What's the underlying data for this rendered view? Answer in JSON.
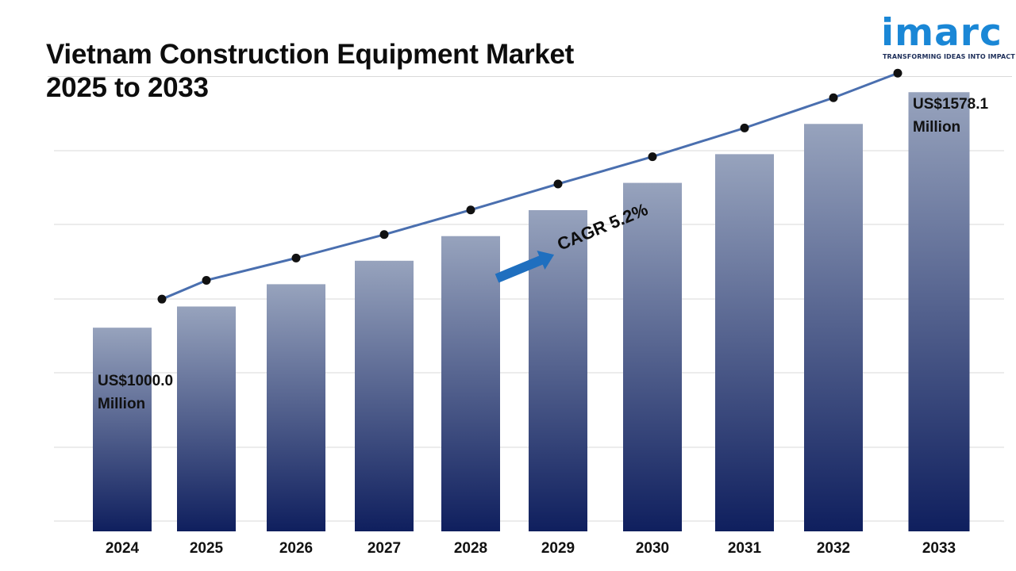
{
  "header": {
    "title_line1": "Vietnam Construction Equipment Market",
    "title_line2": "2025 to 2033"
  },
  "logo": {
    "word": "imarc",
    "tagline": "TRANSFORMING IDEAS INTO IMPACT",
    "color": "#1a87d6"
  },
  "chart_data": {
    "type": "bar",
    "categories": [
      "2024",
      "2025",
      "2026",
      "2027",
      "2028",
      "2029",
      "2030",
      "2031",
      "2032",
      "2033"
    ],
    "values": [
      1000.0,
      1052.0,
      1106.7,
      1164.3,
      1224.8,
      1288.5,
      1355.5,
      1426.0,
      1500.2,
      1578.1
    ],
    "overlay_line": true,
    "first_label": "US$1000.0 Million",
    "last_label": "US$1578.1 Million",
    "annotation": "CAGR 5.2%",
    "ylim": [
      500,
      1600
    ],
    "grid": true,
    "bar_gradient": [
      "#97a3bd",
      "#0f1f5e"
    ],
    "line_color": "#4a6faf",
    "arrow_color": "#1f6fbf"
  }
}
